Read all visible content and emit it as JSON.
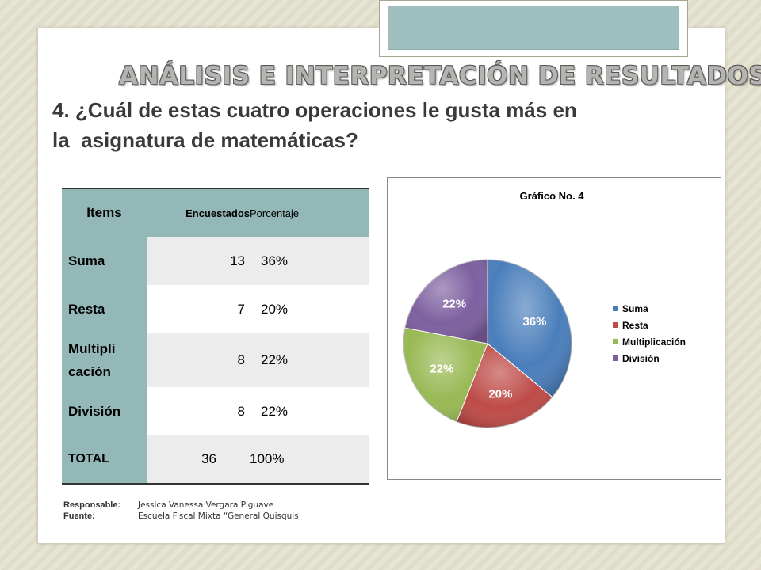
{
  "slide": {
    "title": "ANÁLISIS E INTERPRETACIÓN DE RESULTADOS",
    "question_line1": "4. ¿Cuál de estas cuatro operaciones le gusta más en",
    "question_line2": "la  asignatura de matemáticas?"
  },
  "table": {
    "headers": [
      "Items",
      "Encuestados",
      "Porcentaje"
    ],
    "rows": [
      {
        "item": "Suma",
        "encuestados": "13",
        "porcentaje": "36%"
      },
      {
        "item": "Resta",
        "encuestados": "7",
        "porcentaje": "20%"
      },
      {
        "item_line1": "Multipli",
        "item_line2": "cación",
        "encuestados": "8",
        "porcentaje": "22%"
      },
      {
        "item": "División",
        "encuestados": "8",
        "porcentaje": "22%"
      }
    ],
    "total": {
      "item": "TOTAL",
      "encuestados": "36",
      "porcentaje": "100%"
    }
  },
  "credits": {
    "responsable_label": "Responsable:",
    "responsable_value": "Jessica Vanessa Vergara Piguave",
    "fuente_label": "Fuente:",
    "fuente_value": "Escuela Fiscal Mixta “General Quisquis"
  },
  "chart_data": {
    "type": "pie",
    "title": "Gráfico No. 4",
    "categories": [
      "Suma",
      "Resta",
      "Multiplicación",
      "División"
    ],
    "values": [
      36,
      20,
      22,
      22
    ],
    "data_labels": [
      "36%",
      "20%",
      "22%",
      "22%"
    ],
    "colors": [
      "#4a7ebb",
      "#be4b48",
      "#98b954",
      "#7d60a0"
    ],
    "legend_position": "right"
  }
}
